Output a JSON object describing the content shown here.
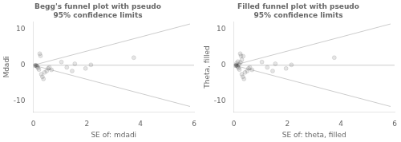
{
  "chart_data": [
    {
      "type": "scatter",
      "title": "Begg's funnel plot with pseudo\n95% confidence limits",
      "x_label": "SE of: mdadi",
      "y_label": "Mdadi",
      "xlim": [
        0,
        6
      ],
      "ylim": [
        -13,
        12
      ],
      "xticks": [
        0,
        2,
        4,
        6
      ],
      "yticks": [
        -10,
        0,
        10
      ],
      "grid": false,
      "legend": false,
      "series": [
        {
          "type": "line",
          "color": "#cccccc",
          "x": [
            0,
            5.85
          ],
          "values": [
            0,
            11.466
          ]
        },
        {
          "type": "line",
          "color": "#cccccc",
          "x": [
            0,
            5.85
          ],
          "values": [
            0,
            -11.466
          ]
        },
        {
          "type": "line",
          "color": "#cccccc",
          "x": [
            0,
            6
          ],
          "values": [
            0,
            0
          ]
        },
        {
          "type": "scatter",
          "marker": "circle",
          "x": [
            0.05,
            0.08,
            0.1,
            0.13,
            0.15,
            0.18,
            0.21,
            0.24,
            0.27,
            0.3,
            0.34,
            0.38,
            0.42,
            0.5,
            0.55,
            0.6,
            0.68,
            1.05,
            1.25,
            1.45,
            1.55,
            1.95,
            2.15,
            3.75
          ],
          "values": [
            -0.1,
            -0.05,
            0.0,
            -0.2,
            -0.4,
            -0.8,
            -1.2,
            3.2,
            2.6,
            -2.5,
            -3.2,
            -3.8,
            -2.0,
            -1.6,
            -0.9,
            -0.6,
            -1.3,
            0.9,
            -0.6,
            -1.6,
            0.4,
            -0.9,
            0.1,
            2.1
          ]
        }
      ]
    },
    {
      "type": "scatter",
      "title": "Filled funnel plot with pseudo\n95% confidence limits",
      "x_label": "SE of: theta, filled",
      "y_label": "Theta, filled",
      "xlim": [
        0,
        6
      ],
      "ylim": [
        -13,
        12
      ],
      "xticks": [
        0,
        2,
        4,
        6
      ],
      "yticks": [
        -10,
        0,
        10
      ],
      "grid": false,
      "legend": false,
      "series": [
        {
          "type": "line",
          "color": "#cccccc",
          "x": [
            0,
            5.85
          ],
          "values": [
            0,
            11.466
          ]
        },
        {
          "type": "line",
          "color": "#cccccc",
          "x": [
            0,
            5.85
          ],
          "values": [
            0,
            -11.466
          ]
        },
        {
          "type": "line",
          "color": "#cccccc",
          "x": [
            0,
            6
          ],
          "values": [
            0,
            0
          ]
        },
        {
          "type": "scatter",
          "marker": "circle",
          "x": [
            0.05,
            0.08,
            0.1,
            0.13,
            0.15,
            0.18,
            0.21,
            0.24,
            0.27,
            0.3,
            0.34,
            0.38,
            0.42,
            0.5,
            0.55,
            0.6,
            0.68,
            0.1,
            0.15,
            0.2,
            0.25,
            0.3,
            0.35,
            1.05,
            1.25,
            1.45,
            1.55,
            1.95,
            2.15,
            3.75
          ],
          "values": [
            -0.1,
            -0.05,
            0.0,
            -0.2,
            -0.4,
            -0.8,
            -1.2,
            3.2,
            2.6,
            -2.5,
            -3.2,
            -3.8,
            -2.0,
            -1.6,
            -0.9,
            -0.6,
            -1.3,
            0.5,
            1.0,
            0.3,
            0.8,
            1.5,
            2.5,
            0.9,
            -0.6,
            -1.6,
            0.4,
            -0.9,
            0.1,
            2.1
          ]
        }
      ]
    }
  ]
}
